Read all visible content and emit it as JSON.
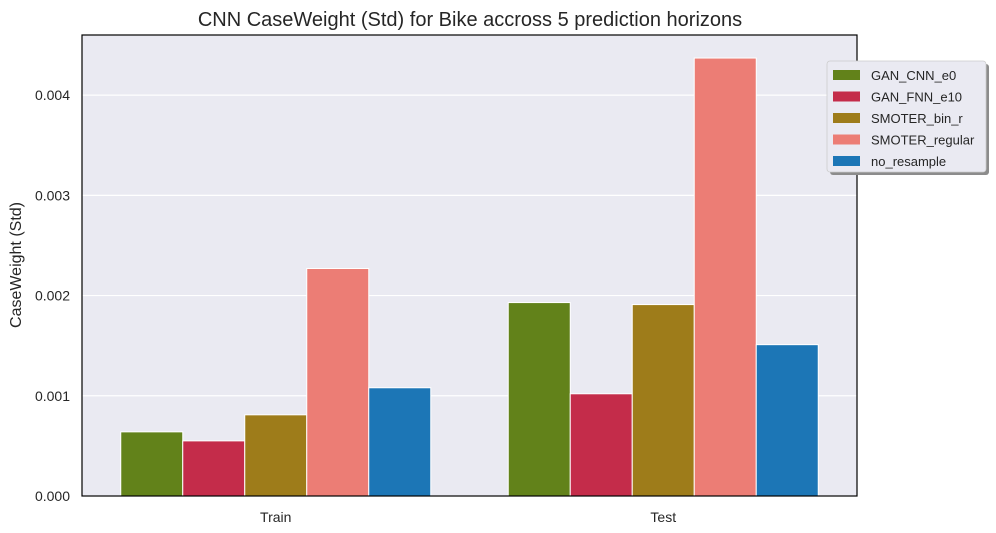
{
  "chart_data": {
    "type": "bar",
    "title": "CNN CaseWeight (Std) for Bike accross 5 prediction horizons",
    "xlabel": "",
    "ylabel": "CaseWeight (Std)",
    "categories": [
      "Train",
      "Test"
    ],
    "ylim": [
      0,
      0.0046
    ],
    "yticks": [
      "0.000",
      "0.001",
      "0.002",
      "0.003",
      "0.004"
    ],
    "grid": true,
    "legend_position": "upper-right-outside",
    "series": [
      {
        "name": "GAN_CNN_e0",
        "color": "#62821a",
        "values": [
          0.00064,
          0.00193
        ]
      },
      {
        "name": "GAN_FNN_e10",
        "color": "#c42c4a",
        "values": [
          0.00055,
          0.00102
        ]
      },
      {
        "name": "SMOTER_bin_r",
        "color": "#9e7c1a",
        "values": [
          0.00081,
          0.00191
        ]
      },
      {
        "name": "SMOTER_regular",
        "color": "#ec7d75",
        "values": [
          0.00227,
          0.00437
        ]
      },
      {
        "name": "no_resample",
        "color": "#1c76b6",
        "values": [
          0.00108,
          0.00151
        ]
      }
    ]
  },
  "style": {
    "plot_background": "#eaeaf2",
    "grid_color": "#ffffff",
    "axis_color": "#000000"
  }
}
